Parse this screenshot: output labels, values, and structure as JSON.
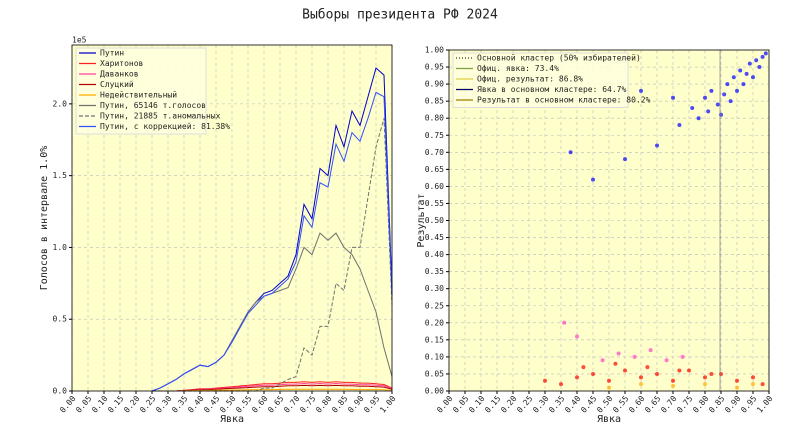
{
  "title": "Выборы президента РФ 2024",
  "chart_data": [
    {
      "type": "line",
      "xlabel": "Явка",
      "ylabel": "Голосов в интервале 1.0%",
      "offset_label": "1e5",
      "grid": true,
      "legend": "upper left",
      "x": [
        0.25,
        0.275,
        0.3,
        0.325,
        0.35,
        0.375,
        0.4,
        0.425,
        0.45,
        0.475,
        0.5,
        0.525,
        0.55,
        0.575,
        0.6,
        0.625,
        0.65,
        0.675,
        0.7,
        0.725,
        0.75,
        0.775,
        0.8,
        0.825,
        0.85,
        0.875,
        0.9,
        0.925,
        0.95,
        0.975,
        1.0
      ],
      "xlim": [
        0,
        1
      ],
      "ylim": [
        0,
        2.41
      ],
      "xticks": [
        {
          "value": 0,
          "label": "0.00"
        },
        {
          "value": 0.05,
          "label": "0.05"
        },
        {
          "value": 0.1,
          "label": "0.10"
        },
        {
          "value": 0.15,
          "label": "0.15"
        },
        {
          "value": 0.2,
          "label": "0.20"
        },
        {
          "value": 0.25,
          "label": "0.25"
        },
        {
          "value": 0.3,
          "label": "0.30"
        },
        {
          "value": 0.35,
          "label": "0.35"
        },
        {
          "value": 0.4,
          "label": "0.40"
        },
        {
          "value": 0.45,
          "label": "0.45"
        },
        {
          "value": 0.5,
          "label": "0.50"
        },
        {
          "value": 0.55,
          "label": "0.55"
        },
        {
          "value": 0.6,
          "label": "0.60"
        },
        {
          "value": 0.65,
          "label": "0.65"
        },
        {
          "value": 0.7,
          "label": "0.70"
        },
        {
          "value": 0.75,
          "label": "0.75"
        },
        {
          "value": 0.8,
          "label": "0.80"
        },
        {
          "value": 0.85,
          "label": "0.85"
        },
        {
          "value": 0.9,
          "label": "0.90"
        },
        {
          "value": 0.95,
          "label": "0.95"
        },
        {
          "value": 1,
          "label": "1.00"
        }
      ],
      "yticks": [
        {
          "value": 0,
          "label": "0.0"
        },
        {
          "value": 0.5,
          "label": "0.5"
        },
        {
          "value": 1,
          "label": "1.0"
        },
        {
          "value": 1.5,
          "label": "1.5"
        },
        {
          "value": 2,
          "label": "2.0"
        }
      ],
      "series": [
        {
          "name": "Путин",
          "color": "#0000cc",
          "style": "solid",
          "values": [
            0,
            0.02,
            0.05,
            0.08,
            0.12,
            0.15,
            0.18,
            0.17,
            0.2,
            0.25,
            0.35,
            0.45,
            0.55,
            0.62,
            0.68,
            0.7,
            0.75,
            0.8,
            0.95,
            1.3,
            1.2,
            1.55,
            1.5,
            1.85,
            1.7,
            1.95,
            1.85,
            2.05,
            2.25,
            2.2,
            0.7
          ]
        },
        {
          "name": "Харитонов",
          "color": "#ff2020",
          "style": "solid",
          "values": [
            0,
            0,
            0,
            0,
            0.005,
            0.01,
            0.015,
            0.015,
            0.02,
            0.025,
            0.03,
            0.035,
            0.04,
            0.045,
            0.05,
            0.05,
            0.055,
            0.06,
            0.06,
            0.065,
            0.06,
            0.065,
            0.06,
            0.065,
            0.06,
            0.06,
            0.055,
            0.055,
            0.05,
            0.045,
            0.02
          ]
        },
        {
          "name": "Даванков",
          "color": "#ff40a0",
          "style": "solid",
          "values": [
            0,
            0,
            0,
            0,
            0.004,
            0.008,
            0.012,
            0.012,
            0.016,
            0.02,
            0.024,
            0.028,
            0.032,
            0.036,
            0.04,
            0.04,
            0.044,
            0.048,
            0.048,
            0.052,
            0.048,
            0.052,
            0.048,
            0.052,
            0.048,
            0.048,
            0.044,
            0.044,
            0.04,
            0.036,
            0.016
          ]
        },
        {
          "name": "Слуцкий",
          "color": "#b00000",
          "style": "solid",
          "values": [
            0,
            0,
            0,
            0,
            0.003,
            0.006,
            0.009,
            0.009,
            0.012,
            0.015,
            0.018,
            0.021,
            0.024,
            0.027,
            0.03,
            0.03,
            0.033,
            0.036,
            0.036,
            0.039,
            0.036,
            0.039,
            0.036,
            0.039,
            0.036,
            0.036,
            0.033,
            0.033,
            0.03,
            0.027,
            0.012
          ]
        },
        {
          "name": "Недействительный",
          "color": "#ffaa00",
          "style": "solid",
          "values": [
            0,
            0,
            0,
            0,
            0.002,
            0.003,
            0.004,
            0.004,
            0.005,
            0.006,
            0.007,
            0.008,
            0.009,
            0.01,
            0.01,
            0.01,
            0.011,
            0.012,
            0.012,
            0.012,
            0.012,
            0.012,
            0.012,
            0.012,
            0.011,
            0.011,
            0.01,
            0.01,
            0.01,
            0.009,
            0.004
          ]
        },
        {
          "name": "Путин, 65146 т.голосов",
          "color": "#707070",
          "style": "solid",
          "values": [
            0,
            0.02,
            0.05,
            0.08,
            0.12,
            0.15,
            0.18,
            0.17,
            0.2,
            0.25,
            0.35,
            0.45,
            0.55,
            0.62,
            0.66,
            0.68,
            0.7,
            0.72,
            0.85,
            1.0,
            0.95,
            1.1,
            1.05,
            1.1,
            1.0,
            0.95,
            0.85,
            0.7,
            0.55,
            0.3,
            0.1
          ]
        },
        {
          "name": "Путин, 21885 т.аномальных",
          "color": "#707070",
          "style": "dashed",
          "values": [
            0,
            0,
            0,
            0,
            0,
            0,
            0,
            0,
            0,
            0,
            0,
            0,
            0,
            0,
            0.02,
            0.02,
            0.05,
            0.08,
            0.1,
            0.3,
            0.25,
            0.45,
            0.45,
            0.75,
            0.7,
            1.0,
            1.0,
            1.35,
            1.7,
            1.9,
            0.6
          ]
        },
        {
          "name": "Путин, с коррекцией: 81.38%",
          "color": "#3050ff",
          "style": "solid",
          "values": [
            0,
            0.02,
            0.05,
            0.08,
            0.12,
            0.15,
            0.18,
            0.17,
            0.2,
            0.25,
            0.34,
            0.44,
            0.54,
            0.6,
            0.66,
            0.68,
            0.73,
            0.78,
            0.9,
            1.22,
            1.14,
            1.45,
            1.42,
            1.72,
            1.6,
            1.8,
            1.74,
            1.9,
            2.08,
            2.05,
            0.66
          ]
        }
      ]
    },
    {
      "type": "scatter",
      "xlabel": "Явка",
      "ylabel": "Результат",
      "grid": true,
      "legend": "upper left",
      "xlim": [
        0,
        1
      ],
      "ylim": [
        0,
        1
      ],
      "xticks": [
        {
          "value": 0,
          "label": "0.00"
        },
        {
          "value": 0.05,
          "label": "0.05"
        },
        {
          "value": 0.1,
          "label": "0.10"
        },
        {
          "value": 0.15,
          "label": "0.15"
        },
        {
          "value": 0.2,
          "label": "0.20"
        },
        {
          "value": 0.25,
          "label": "0.25"
        },
        {
          "value": 0.3,
          "label": "0.30"
        },
        {
          "value": 0.35,
          "label": "0.35"
        },
        {
          "value": 0.4,
          "label": "0.40"
        },
        {
          "value": 0.45,
          "label": "0.45"
        },
        {
          "value": 0.5,
          "label": "0.50"
        },
        {
          "value": 0.55,
          "label": "0.55"
        },
        {
          "value": 0.6,
          "label": "0.60"
        },
        {
          "value": 0.65,
          "label": "0.65"
        },
        {
          "value": 0.7,
          "label": "0.70"
        },
        {
          "value": 0.75,
          "label": "0.75"
        },
        {
          "value": 0.8,
          "label": "0.80"
        },
        {
          "value": 0.85,
          "label": "0.85"
        },
        {
          "value": 0.9,
          "label": "0.90"
        },
        {
          "value": 0.95,
          "label": "0.95"
        },
        {
          "value": 1,
          "label": "1.00"
        }
      ],
      "yticks": [
        {
          "value": 0,
          "label": "0.00"
        },
        {
          "value": 0.05,
          "label": "0.05"
        },
        {
          "value": 0.1,
          "label": "0.10"
        },
        {
          "value": 0.15,
          "label": "0.15"
        },
        {
          "value": 0.2,
          "label": "0.20"
        },
        {
          "value": 0.25,
          "label": "0.25"
        },
        {
          "value": 0.3,
          "label": "0.30"
        },
        {
          "value": 0.35,
          "label": "0.35"
        },
        {
          "value": 0.4,
          "label": "0.40"
        },
        {
          "value": 0.45,
          "label": "0.45"
        },
        {
          "value": 0.5,
          "label": "0.50"
        },
        {
          "value": 0.55,
          "label": "0.55"
        },
        {
          "value": 0.6,
          "label": "0.60"
        },
        {
          "value": 0.65,
          "label": "0.65"
        },
        {
          "value": 0.7,
          "label": "0.70"
        },
        {
          "value": 0.75,
          "label": "0.75"
        },
        {
          "value": 0.8,
          "label": "0.80"
        },
        {
          "value": 0.85,
          "label": "0.85"
        },
        {
          "value": 0.9,
          "label": "0.90"
        },
        {
          "value": 0.95,
          "label": "0.95"
        },
        {
          "value": 1,
          "label": "1.00"
        }
      ],
      "vlines": [
        0.847
      ],
      "annotations": [
        {
          "text": "Основной кластер (50% избирателей)",
          "color": "#333333",
          "style": "dotted"
        },
        {
          "text": "Офиц. явка: 73.4%",
          "color": "#80a040",
          "style": "solid"
        },
        {
          "text": "Офиц. результат: 86.8%",
          "color": "#e0d040",
          "style": "solid"
        },
        {
          "text": "Явка в основном кластере: 64.7%",
          "color": "#000060",
          "style": "solid"
        },
        {
          "text": "Результат в основном кластере: 80.2%",
          "color": "#a08000",
          "style": "solid"
        }
      ],
      "series": [
        {
          "color": "#0000ff",
          "x": [
            0.76,
            0.78,
            0.8,
            0.81,
            0.82,
            0.84,
            0.85,
            0.86,
            0.87,
            0.88,
            0.89,
            0.9,
            0.91,
            0.92,
            0.93,
            0.94,
            0.95,
            0.96,
            0.97,
            0.98,
            0.99,
            0.72,
            0.65,
            0.55,
            0.45,
            0.38,
            0.6,
            0.7
          ],
          "y": [
            0.83,
            0.8,
            0.86,
            0.82,
            0.88,
            0.84,
            0.81,
            0.87,
            0.9,
            0.85,
            0.92,
            0.88,
            0.94,
            0.9,
            0.93,
            0.96,
            0.92,
            0.97,
            0.95,
            0.98,
            0.99,
            0.78,
            0.72,
            0.68,
            0.62,
            0.7,
            0.88,
            0.86
          ]
        },
        {
          "color": "#ff0000",
          "x": [
            0.3,
            0.35,
            0.4,
            0.45,
            0.5,
            0.55,
            0.6,
            0.65,
            0.7,
            0.75,
            0.8,
            0.85,
            0.9,
            0.95,
            0.98,
            0.42,
            0.52,
            0.62,
            0.72,
            0.82
          ],
          "y": [
            0.03,
            0.02,
            0.04,
            0.05,
            0.03,
            0.06,
            0.04,
            0.05,
            0.03,
            0.06,
            0.04,
            0.05,
            0.03,
            0.04,
            0.02,
            0.07,
            0.08,
            0.07,
            0.06,
            0.05
          ]
        },
        {
          "color": "#ff40c0",
          "x": [
            0.48,
            0.53,
            0.58,
            0.63,
            0.68,
            0.73,
            0.4,
            0.36
          ],
          "y": [
            0.09,
            0.11,
            0.1,
            0.12,
            0.09,
            0.1,
            0.16,
            0.2
          ]
        },
        {
          "color": "#ffaa00",
          "x": [
            0.5,
            0.6,
            0.7,
            0.8,
            0.9,
            0.95
          ],
          "y": [
            0.01,
            0.02,
            0.015,
            0.02,
            0.01,
            0.02
          ]
        }
      ]
    }
  ]
}
